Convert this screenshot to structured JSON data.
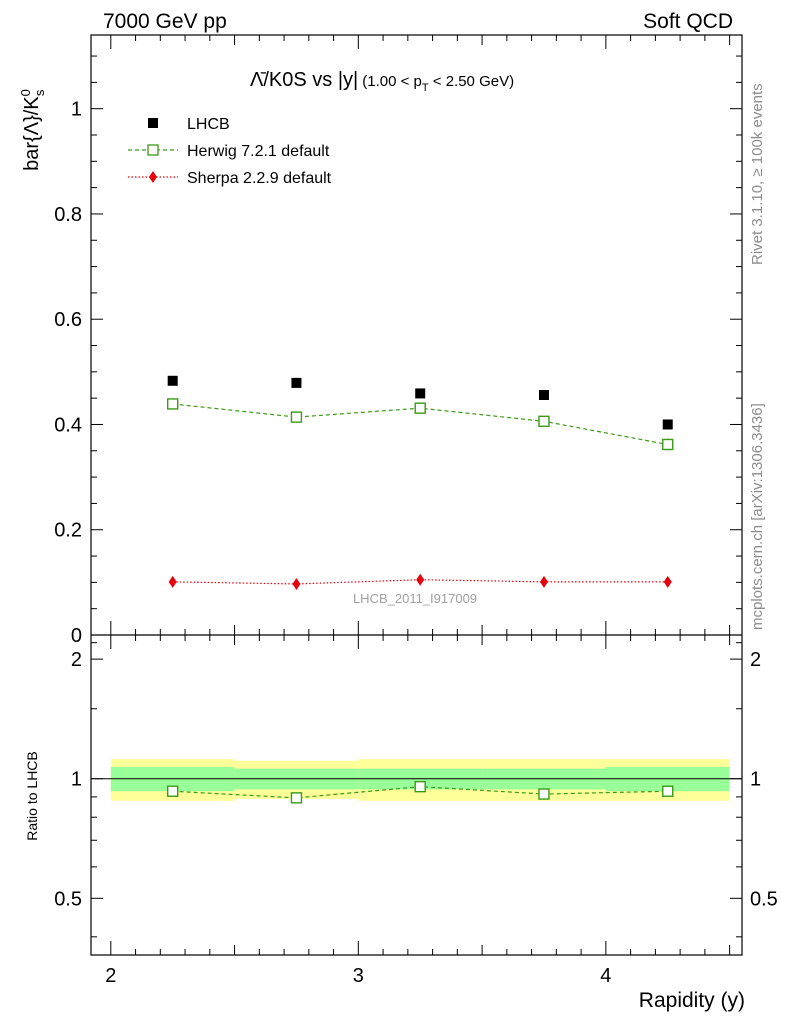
{
  "header": {
    "left": "7000 GeV pp",
    "right": "Soft QCD"
  },
  "side": {
    "rivet": "Rivet 3.1.10, ≥ 100k events",
    "mcplots": "mcplots.cern.ch [arXiv:1306.3436]"
  },
  "watermark": "LHCB_2011_I917009",
  "title": {
    "main": "Λ̄/K0S vs |y|",
    "cut_prefix": "(1.00 < p",
    "cut_sub": "T",
    "cut_suffix": " < 2.50 GeV)"
  },
  "colors": {
    "data": "#000000",
    "herwig": "#3a9a16",
    "sherpa": "#e8000b",
    "band_inner": "#99ff99",
    "band_outer": "#ffff99"
  },
  "chart_data": {
    "type": "scatter",
    "xlabel": "Rapidity (y)",
    "ylabel": "bar{Λ}/K⁰s",
    "ratio_ylabel": "Ratio to LHCB",
    "xlim": [
      1.92,
      4.55
    ],
    "ylim": [
      0,
      1.14
    ],
    "ratio_ylim": [
      0.36,
      2.3
    ],
    "x_ticks": [
      "2",
      "3",
      "4"
    ],
    "y_ticks": [
      "0",
      "0.2",
      "0.4",
      "0.6",
      "0.8",
      "1"
    ],
    "ratio_ticks": [
      "0.5",
      "1",
      "2"
    ],
    "bins": [
      [
        2.0,
        2.5
      ],
      [
        2.5,
        3.0
      ],
      [
        3.0,
        3.5
      ],
      [
        3.5,
        4.0
      ],
      [
        4.0,
        4.5
      ]
    ],
    "x": [
      2.25,
      2.75,
      3.25,
      3.75,
      4.25
    ],
    "series": [
      {
        "name": "LHCB",
        "marker": "square-filled",
        "values": [
          0.483,
          0.479,
          0.459,
          0.456,
          0.4
        ]
      },
      {
        "name": "Herwig 7.2.1 default",
        "marker": "square-open",
        "style": "dashed",
        "values": [
          0.439,
          0.414,
          0.431,
          0.406,
          0.362
        ],
        "errors": [
          0.01,
          0.009,
          0.01,
          0.01,
          0.011
        ]
      },
      {
        "name": "Sherpa 2.2.9 default",
        "marker": "diamond",
        "style": "dotted",
        "values": [
          0.101,
          0.097,
          0.105,
          0.101,
          0.101
        ]
      }
    ],
    "ratio": {
      "herwig": [
        0.93,
        0.895,
        0.955,
        0.915,
        0.93
      ],
      "band_inner": [
        [
          0.93,
          1.07
        ],
        [
          0.94,
          1.06
        ],
        [
          0.94,
          1.06
        ],
        [
          0.94,
          1.06
        ],
        [
          0.93,
          1.07
        ]
      ],
      "band_outer": [
        [
          0.88,
          1.12
        ],
        [
          0.89,
          1.11
        ],
        [
          0.88,
          1.12
        ],
        [
          0.88,
          1.12
        ],
        [
          0.88,
          1.12
        ]
      ]
    }
  }
}
